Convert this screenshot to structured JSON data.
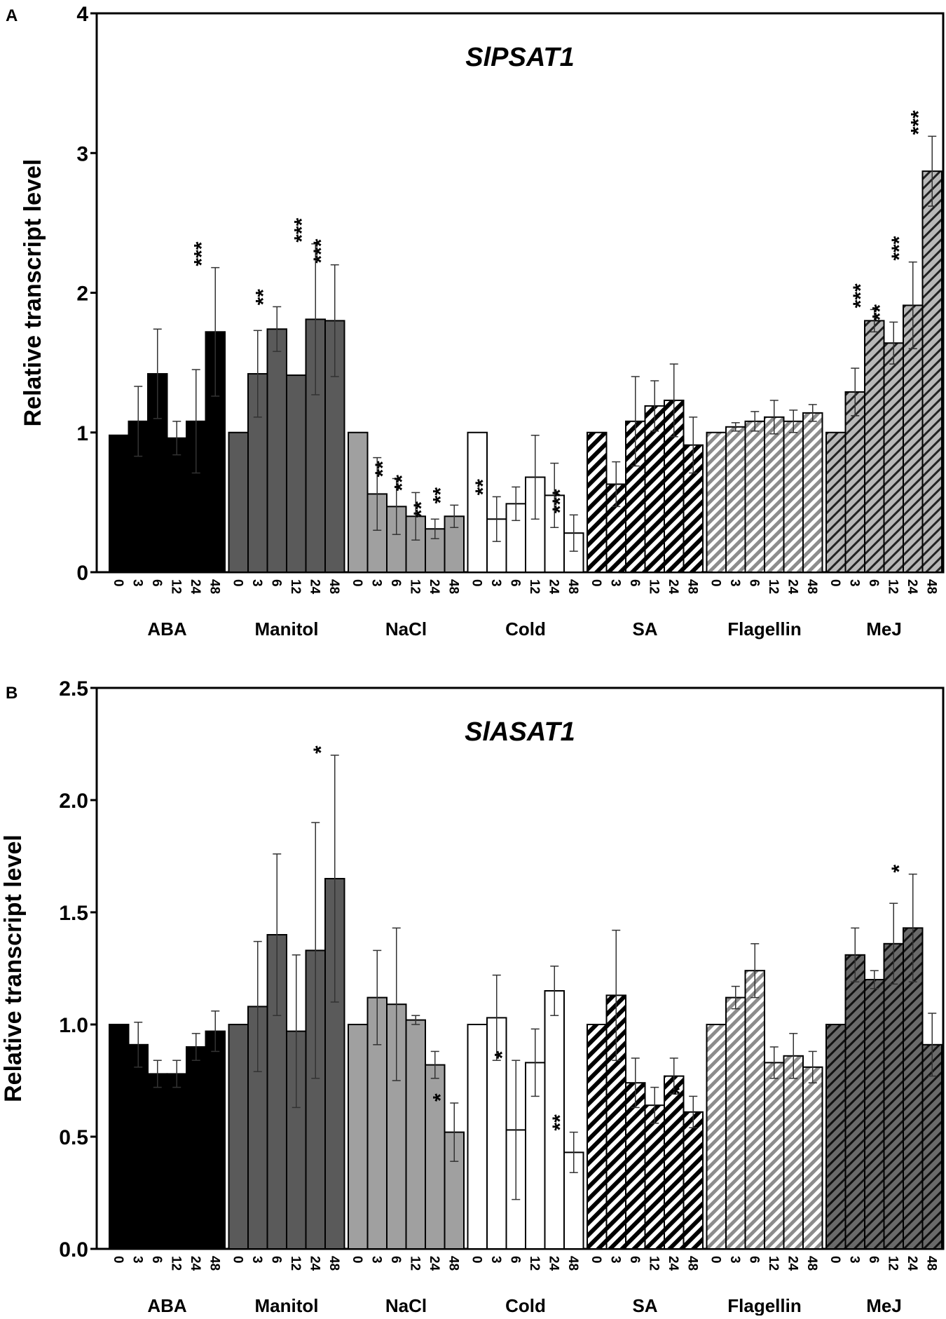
{
  "chart_data": [
    {
      "panel": "A",
      "type": "bar",
      "title": "SlPSAT1",
      "ylabel": "Relative transcript level",
      "xlabel": "",
      "ylim": [
        0,
        4
      ],
      "yticks": [
        "0",
        "1",
        "2",
        "3",
        "4"
      ],
      "ytick_values": [
        0,
        1,
        2,
        3,
        4
      ],
      "timepoints": [
        "0",
        "3",
        "6",
        "12",
        "24",
        "48"
      ],
      "groups": [
        {
          "name": "ABA",
          "style": "black",
          "values": [
            0.98,
            1.08,
            1.42,
            0.96,
            1.08,
            1.72
          ],
          "errors": [
            0,
            0.25,
            0.32,
            0.12,
            0.37,
            0.46
          ],
          "stars": [
            "",
            "",
            "",
            "",
            "",
            "***"
          ]
        },
        {
          "name": "Manitol",
          "style": "dark",
          "values": [
            1.0,
            1.42,
            1.74,
            1.41,
            1.81,
            1.8
          ],
          "errors": [
            0,
            0.31,
            0.16,
            0,
            0.54,
            0.4
          ],
          "stars": [
            "",
            "",
            "**",
            "",
            "***",
            "***"
          ]
        },
        {
          "name": "NaCl",
          "style": "mid",
          "values": [
            1.0,
            0.56,
            0.47,
            0.4,
            0.31,
            0.4
          ],
          "errors": [
            0,
            0.26,
            0.2,
            0.17,
            0.07,
            0.08
          ],
          "stars": [
            "",
            "",
            "**",
            "**",
            "**",
            "**"
          ]
        },
        {
          "name": "Cold",
          "style": "white",
          "values": [
            1.0,
            0.38,
            0.49,
            0.68,
            0.55,
            0.28
          ],
          "errors": [
            0,
            0.16,
            0.12,
            0.3,
            0.23,
            0.13
          ],
          "stars": [
            "",
            "**",
            "",
            "",
            "",
            "***"
          ]
        },
        {
          "name": "SA",
          "style": "hatch-bw",
          "values": [
            1.0,
            0.63,
            1.08,
            1.19,
            1.23,
            0.91
          ],
          "errors": [
            0,
            0.16,
            0.32,
            0.18,
            0.26,
            0.2
          ],
          "stars": [
            "",
            "",
            "",
            "",
            "",
            ""
          ]
        },
        {
          "name": "Flagellin",
          "style": "hatch-light",
          "values": [
            1.0,
            1.04,
            1.08,
            1.11,
            1.08,
            1.14
          ],
          "errors": [
            0,
            0.03,
            0.07,
            0.12,
            0.08,
            0.06
          ],
          "stars": [
            "",
            "",
            "",
            "",
            "",
            ""
          ]
        },
        {
          "name": "MeJ",
          "style": "hatch-gray",
          "values": [
            1.0,
            1.29,
            1.8,
            1.64,
            1.91,
            2.87
          ],
          "errors": [
            0,
            0.17,
            0.08,
            0.15,
            0.31,
            0.25
          ],
          "stars": [
            "",
            "",
            "***",
            "**",
            "***",
            "***"
          ]
        }
      ]
    },
    {
      "panel": "B",
      "type": "bar",
      "title": "SlASAT1",
      "ylabel": "Relative transcript level",
      "xlabel": "",
      "ylim": [
        0,
        2.5
      ],
      "yticks": [
        "0.0",
        "0.5",
        "1.0",
        "1.5",
        "2.0",
        "2.5"
      ],
      "ytick_values": [
        0,
        0.5,
        1.0,
        1.5,
        2.0,
        2.5
      ],
      "timepoints": [
        "0",
        "3",
        "6",
        "12",
        "24",
        "48"
      ],
      "groups": [
        {
          "name": "ABA",
          "style": "black",
          "values": [
            1.0,
            0.91,
            0.78,
            0.78,
            0.9,
            0.97
          ],
          "errors": [
            0,
            0.1,
            0.06,
            0.06,
            0.06,
            0.09
          ],
          "stars": [
            "",
            "",
            "",
            "",
            "",
            ""
          ]
        },
        {
          "name": "Manitol",
          "style": "dark",
          "values": [
            1.0,
            1.08,
            1.4,
            0.97,
            1.33,
            1.65
          ],
          "errors": [
            0,
            0.29,
            0.36,
            0.34,
            0.57,
            0.55
          ],
          "stars": [
            "",
            "",
            "",
            "",
            "",
            "*"
          ]
        },
        {
          "name": "NaCl",
          "style": "mid",
          "values": [
            1.0,
            1.12,
            1.09,
            1.02,
            0.82,
            0.52
          ],
          "errors": [
            0,
            0.21,
            0.34,
            0.02,
            0.06,
            0.13
          ],
          "stars": [
            "",
            "",
            "",
            "",
            "",
            "*"
          ]
        },
        {
          "name": "Cold",
          "style": "white",
          "values": [
            1.0,
            1.03,
            0.53,
            0.83,
            1.15,
            0.43
          ],
          "errors": [
            0,
            0.19,
            0.31,
            0.15,
            0.11,
            0.09
          ],
          "stars": [
            "",
            "",
            "*",
            "",
            "",
            "**"
          ]
        },
        {
          "name": "SA",
          "style": "hatch-bw",
          "values": [
            1.0,
            1.13,
            0.74,
            0.64,
            0.77,
            0.61
          ],
          "errors": [
            0,
            0.29,
            0.11,
            0.08,
            0.08,
            0.07
          ],
          "stars": [
            "",
            "",
            "",
            "",
            "",
            "*"
          ]
        },
        {
          "name": "Flagellin",
          "style": "hatch-light",
          "values": [
            1.0,
            1.12,
            1.24,
            0.83,
            0.86,
            0.81
          ],
          "errors": [
            0,
            0.05,
            0.12,
            0.07,
            0.1,
            0.07
          ],
          "stars": [
            "",
            "",
            "",
            "",
            "",
            ""
          ]
        },
        {
          "name": "MeJ",
          "style": "hatch-dark",
          "values": [
            1.0,
            1.31,
            1.2,
            1.36,
            1.43,
            0.91
          ],
          "errors": [
            0,
            0.12,
            0.04,
            0.18,
            0.24,
            0.14
          ],
          "stars": [
            "",
            "",
            "",
            "",
            "*",
            ""
          ]
        }
      ]
    }
  ],
  "colors": {
    "black": "#000000",
    "dark": "#5a5a5a",
    "mid": "#a0a0a0",
    "white": "#ffffff",
    "light_hatch": "#b4b4b4",
    "gray_hatch": "#9a9a9a",
    "dark_hatch": "#5e5e5e"
  }
}
